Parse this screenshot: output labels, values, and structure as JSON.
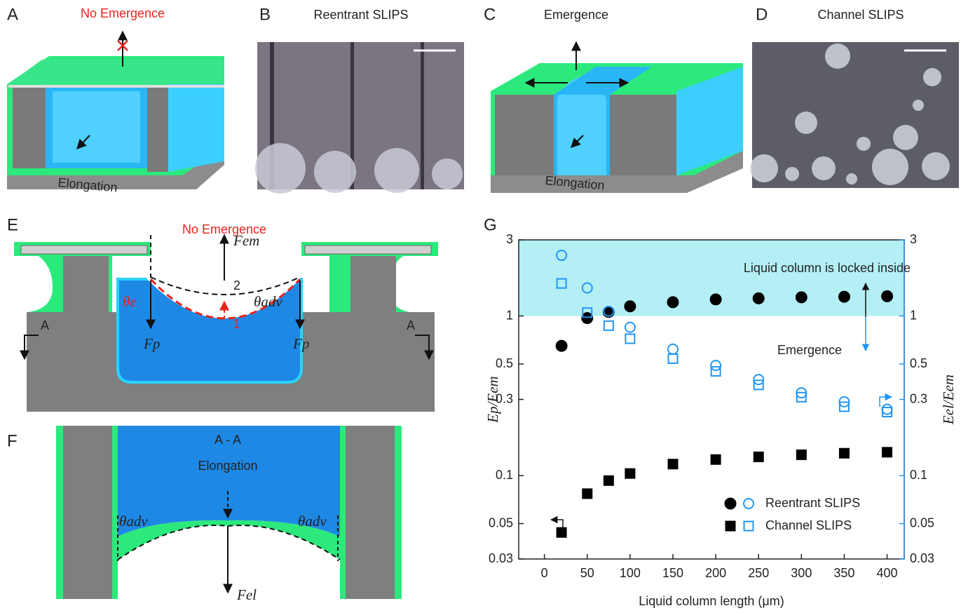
{
  "panels": {
    "A": {
      "label": "A",
      "title": "No Emergence",
      "caption": "Elongation"
    },
    "B": {
      "label": "B",
      "title": "Reentrant SLIPS"
    },
    "C": {
      "label": "C",
      "title": "Emergence",
      "caption": "Elongation"
    },
    "D": {
      "label": "D",
      "title": "Channel SLIPS"
    },
    "E": {
      "label": "E",
      "title": "No Emergence",
      "force_up": "Fem",
      "level_2": "2",
      "level_1": "1",
      "angle_e": "θe",
      "angle_adv": "θadv",
      "section_left": "A",
      "section_right": "A",
      "force_left": "Fp",
      "force_right": "Fp"
    },
    "F": {
      "label": "F",
      "title": "A - A",
      "caption": "Elongation",
      "angle_left": "θadv",
      "angle_right": "θadv",
      "force_down": "Fel"
    },
    "G": {
      "label": "G"
    }
  },
  "chart_data": {
    "type": "scatter",
    "x_label": "Liquid column length (μm)",
    "y_label": "Ep/Eem",
    "y2_label": "Eel/Eem",
    "log_y": true,
    "x": [
      20,
      50,
      75,
      100,
      150,
      200,
      250,
      300,
      350,
      400
    ],
    "series": [
      {
        "name": "Reentrant SLIPS",
        "marker": "circle",
        "color": "#000000",
        "values": [
          0.65,
          0.97,
          1.06,
          1.15,
          1.22,
          1.27,
          1.29,
          1.31,
          1.32,
          1.33
        ],
        "y2_color": "#2196f3",
        "y2_values": [
          2.4,
          1.5,
          1.07,
          0.85,
          0.62,
          0.49,
          0.4,
          0.33,
          0.29,
          0.26
        ]
      },
      {
        "name": "Channel SLIPS",
        "marker": "square",
        "color": "#000000",
        "values": [
          0.044,
          0.077,
          0.093,
          0.103,
          0.118,
          0.126,
          0.131,
          0.135,
          0.138,
          0.14
        ],
        "y2_color": "#2196f3",
        "y2_values": [
          1.6,
          1.05,
          0.87,
          0.72,
          0.54,
          0.45,
          0.37,
          0.31,
          0.27,
          0.25
        ]
      }
    ],
    "xlim": [
      -30,
      420
    ],
    "xticks": [
      0,
      50,
      100,
      150,
      200,
      250,
      300,
      350,
      400
    ],
    "ylim": [
      0.03,
      3
    ],
    "yticks": [
      0.03,
      0.05,
      0.1,
      0.3,
      0.5,
      1,
      3
    ],
    "y2lim": [
      0.03,
      3
    ],
    "y2ticks": [
      0.03,
      0.05,
      0.1,
      0.3,
      0.5,
      1,
      3
    ],
    "shaded_band": [
      1,
      3
    ],
    "shaded_color": "#b3eff4",
    "annotation_top": "Liquid column is locked inside",
    "annotation_bottom": "Emergence"
  }
}
